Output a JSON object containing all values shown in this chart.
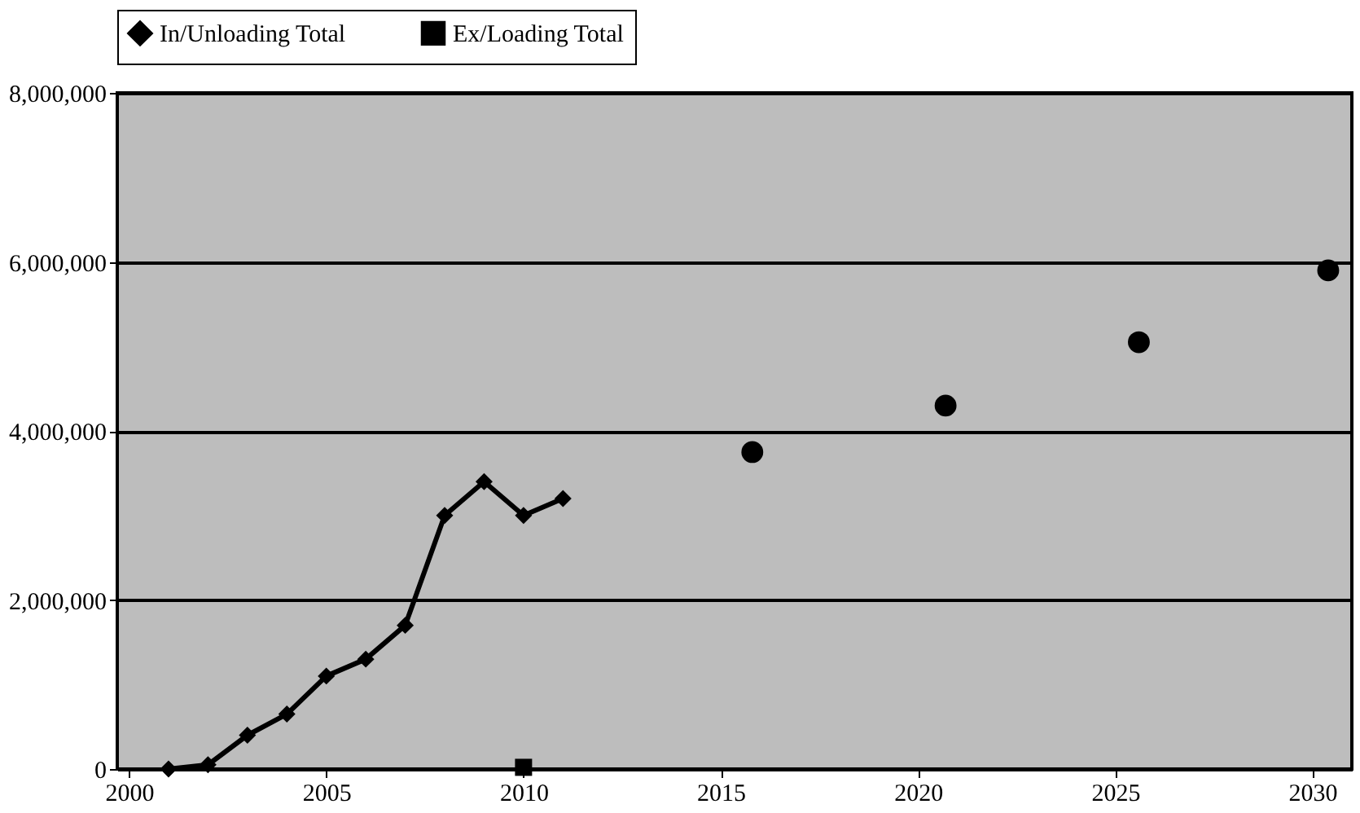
{
  "chart_data": {
    "type": "line",
    "xlim": [
      1999.7,
      2031
    ],
    "xticks": [
      2000,
      2005,
      2010,
      2015,
      2020,
      2025,
      2030
    ],
    "ylim": [
      0,
      8000000
    ],
    "yticks": [
      0,
      {
        "value": 2000000,
        "label": "2,000,000"
      },
      {
        "value": 4000000,
        "label": "4,000,000"
      },
      {
        "value": 6000000,
        "label": "6,000,000"
      },
      {
        "value": 8000000,
        "label": "8,000,000"
      }
    ],
    "grid": "y",
    "legend": "top",
    "series": [
      {
        "name": "In/Unloading Total",
        "color": "#000000",
        "marker": "diamond",
        "x": [
          2001,
          2002,
          2003,
          2004,
          2005,
          2006,
          2007,
          2008,
          2009,
          2010,
          2011
        ],
        "values": [
          0,
          50000,
          400000,
          650000,
          1100000,
          1300000,
          1700000,
          3000000,
          3400000,
          3000000,
          3200000
        ]
      },
      {
        "name": "Ex/Loading Total",
        "color": "#000000",
        "marker": "square",
        "x": [
          2010
        ],
        "values": [
          20000
        ]
      },
      {
        "type": "scatter",
        "color": "#000000",
        "marker": "circle",
        "x": [
          2015.8,
          2020.7,
          2025.6,
          2030.4
        ],
        "values": [
          3750000,
          4300000,
          5050000,
          5900000
        ]
      }
    ]
  }
}
